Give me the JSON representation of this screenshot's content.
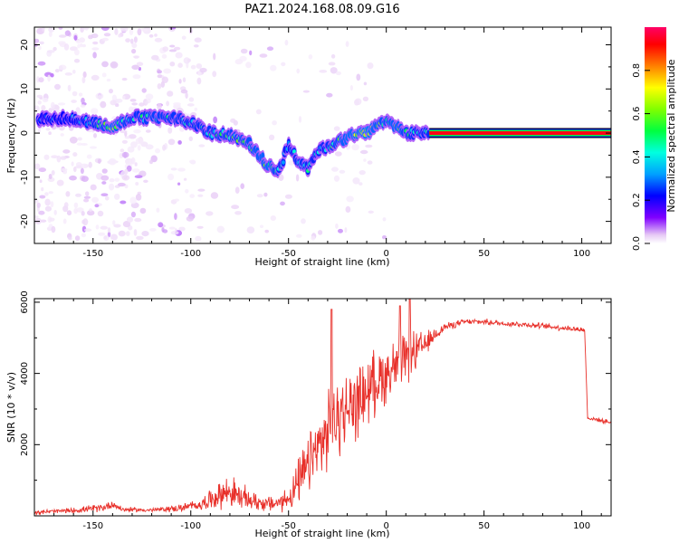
{
  "title": "PAZ1.2024.168.08.09.G16",
  "chart_data": [
    {
      "type": "heatmap",
      "xlabel": "Height of straight line (km)",
      "ylabel": "Frequency (Hz)",
      "xlim": [
        -180,
        115
      ],
      "ylim": [
        -25,
        24
      ],
      "xticks": [
        -150,
        -100,
        -50,
        0,
        50,
        100
      ],
      "yticks": [
        -20,
        -10,
        0,
        10,
        20
      ],
      "colorbar": {
        "label": "Normalized spectral amplitude",
        "range": [
          0,
          1
        ],
        "ticks": [
          0.0,
          0.2,
          0.4,
          0.6,
          0.8
        ],
        "colormap": [
          "#ffffff",
          "#e6c8f5",
          "#8000ff",
          "#0000ff",
          "#00a0ff",
          "#00ffe0",
          "#00ff40",
          "#80ff00",
          "#ffff00",
          "#ff8000",
          "#ff0000",
          "#ff0066"
        ]
      },
      "ridge": {
        "x": [
          -180,
          -165,
          -150,
          -140,
          -130,
          -120,
          -110,
          -100,
          -90,
          -80,
          -70,
          -65,
          -60,
          -55,
          -50,
          -45,
          -40,
          -35,
          -30,
          -25,
          -20,
          -15,
          -10,
          -5,
          0,
          5,
          10,
          15,
          20
        ],
        "y": [
          3.0,
          3.5,
          2.5,
          1.5,
          3.5,
          3.5,
          3.5,
          2.5,
          0,
          -0.5,
          -2.5,
          -5,
          -7.5,
          -9,
          -2.5,
          -6.5,
          -8,
          -4,
          -3,
          -2,
          -1,
          0,
          0,
          1.5,
          2.5,
          1.5,
          0,
          0,
          0
        ],
        "peak": [
          0.35,
          0.35,
          0.5,
          0.75,
          0.5,
          0.6,
          0.55,
          0.5,
          0.55,
          0.6,
          0.65,
          0.7,
          0.75,
          0.55,
          0.4,
          0.55,
          0.5,
          0.45,
          0.5,
          0.65,
          0.75,
          0.8,
          0.85,
          0.7,
          0.65,
          0.75,
          0.6,
          0.5,
          0.5
        ]
      },
      "carrier_line": {
        "x_start": 22,
        "x_end": 115,
        "y": 0,
        "amplitude": 1.0
      }
    },
    {
      "type": "line",
      "xlabel": "Height of straight line (km)",
      "ylabel": "SNR (10 * v/v)",
      "xlim": [
        -180,
        115
      ],
      "ylim": [
        0,
        6100
      ],
      "xticks": [
        -150,
        -100,
        -50,
        0,
        50,
        100
      ],
      "yticks": [
        2000,
        4000,
        6000
      ],
      "color": "#e8302a",
      "x": [
        -180,
        -160,
        -145,
        -140,
        -135,
        -120,
        -105,
        -95,
        -85,
        -80,
        -75,
        -70,
        -65,
        -60,
        -55,
        -50,
        -45,
        -40,
        -35,
        -30,
        -28,
        -25,
        -20,
        -15,
        -10,
        -5,
        0,
        5,
        10,
        15,
        20,
        25,
        30,
        40,
        50,
        60,
        70,
        80,
        90,
        100,
        101.5,
        103,
        108,
        115
      ],
      "y": [
        100,
        150,
        230,
        330,
        180,
        160,
        220,
        320,
        600,
        700,
        520,
        450,
        380,
        330,
        360,
        500,
        900,
        1400,
        1900,
        2300,
        2500,
        2700,
        3000,
        3200,
        3500,
        3800,
        4000,
        4200,
        4400,
        4600,
        4800,
        5100,
        5300,
        5450,
        5450,
        5400,
        5380,
        5330,
        5280,
        5230,
        5200,
        2750,
        2700,
        2620
      ],
      "noise_amp": [
        60,
        80,
        110,
        130,
        70,
        60,
        110,
        160,
        380,
        480,
        380,
        300,
        250,
        220,
        250,
        380,
        650,
        850,
        1000,
        1100,
        1100,
        1100,
        1050,
        1000,
        950,
        900,
        850,
        800,
        700,
        600,
        350,
        200,
        120,
        80,
        80,
        80,
        80,
        80,
        80,
        80,
        80,
        60,
        60,
        60
      ],
      "spikes": [
        {
          "x": -28,
          "y": 5800
        },
        {
          "x": 7,
          "y": 5900
        },
        {
          "x": 12,
          "y": 6100
        }
      ]
    }
  ]
}
